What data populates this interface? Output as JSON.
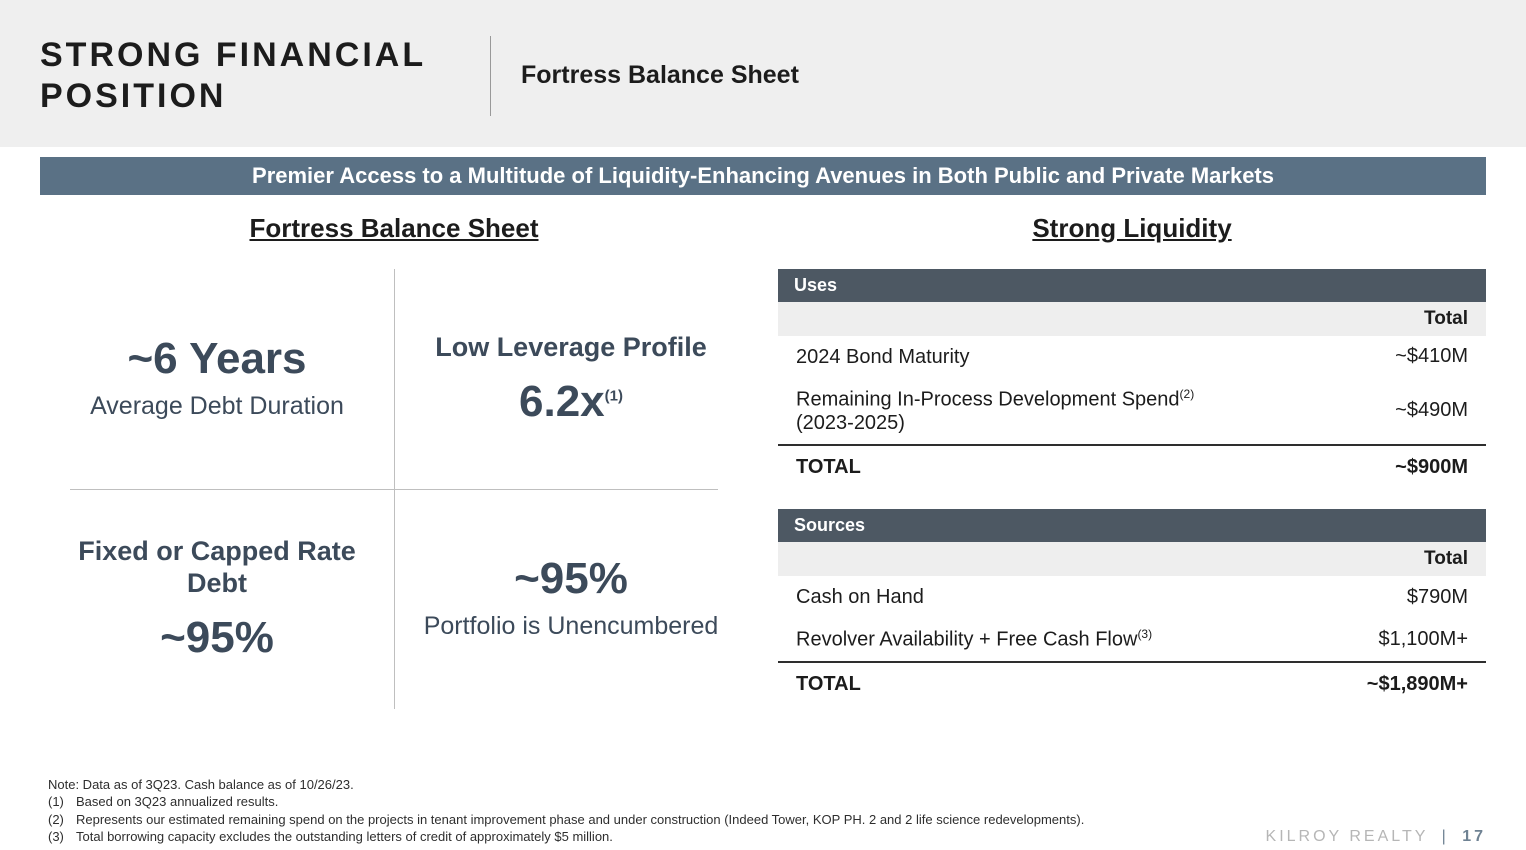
{
  "header": {
    "title_line1": "STRONG FINANCIAL",
    "title_line2": "POSITION",
    "subtitle": "Fortress Balance Sheet"
  },
  "banner": "Premier Access to a Multitude of Liquidity-Enhancing Avenues in Both Public and Private Markets",
  "colors": {
    "header_bg": "#efefef",
    "banner_bg": "#5a7185",
    "banner_fg": "#ffffff",
    "table_head_bg": "#4d5863",
    "table_sub_bg": "#eeeeee",
    "stat_text": "#3c4a5a",
    "divider": "#bfbfbf",
    "brand_grey": "#b6b6b6",
    "brand_accent": "#6f8293"
  },
  "typography": {
    "header_title_pt": 34,
    "header_subtitle_pt": 25,
    "banner_pt": 22,
    "col_title_pt": 26,
    "stat_big_pt": 44,
    "stat_label_pt": 25,
    "table_row_pt": 20,
    "footnote_pt": 13
  },
  "left": {
    "title": "Fortress Balance Sheet",
    "cells": {
      "tl": {
        "big": "~6 Years",
        "label": "Average Debt Duration"
      },
      "tr": {
        "label_top": "Low Leverage Profile",
        "big": "6.2x",
        "sup": "(1)"
      },
      "bl": {
        "label_top": "Fixed or Capped Rate Debt",
        "big": "~95%"
      },
      "br": {
        "big": "~95%",
        "label": "Portfolio is Unencumbered"
      }
    }
  },
  "right": {
    "title": "Strong Liquidity",
    "uses": {
      "header": "Uses",
      "col_label": "Total",
      "rows": [
        {
          "label": "2024 Bond Maturity",
          "sup": "",
          "value": "~$410M"
        },
        {
          "label": "Remaining In-Process Development Spend",
          "sup": "(2)",
          "label2": "(2023-2025)",
          "value": "~$490M"
        }
      ],
      "total_label": "TOTAL",
      "total_value": "~$900M"
    },
    "sources": {
      "header": "Sources",
      "col_label": "Total",
      "rows": [
        {
          "label": "Cash on Hand",
          "sup": "",
          "value": "$790M"
        },
        {
          "label": "Revolver Availability + Free Cash Flow",
          "sup": "(3)",
          "value": "$1,100M+"
        }
      ],
      "total_label": "TOTAL",
      "total_value": "~$1,890M+"
    }
  },
  "footer": {
    "note": "Note: Data as of 3Q23. Cash balance as of 10/26/23.",
    "fns": [
      {
        "n": "(1)",
        "t": "Based on 3Q23 annualized results."
      },
      {
        "n": "(2)",
        "t": "Represents our estimated remaining spend on the projects in tenant improvement phase and under construction (Indeed Tower, KOP PH. 2 and 2 life science redevelopments)."
      },
      {
        "n": "(3)",
        "t": "Total borrowing capacity excludes the outstanding letters of credit of approximately $5 million."
      }
    ],
    "brand": "KILROY REALTY",
    "page": "17"
  }
}
